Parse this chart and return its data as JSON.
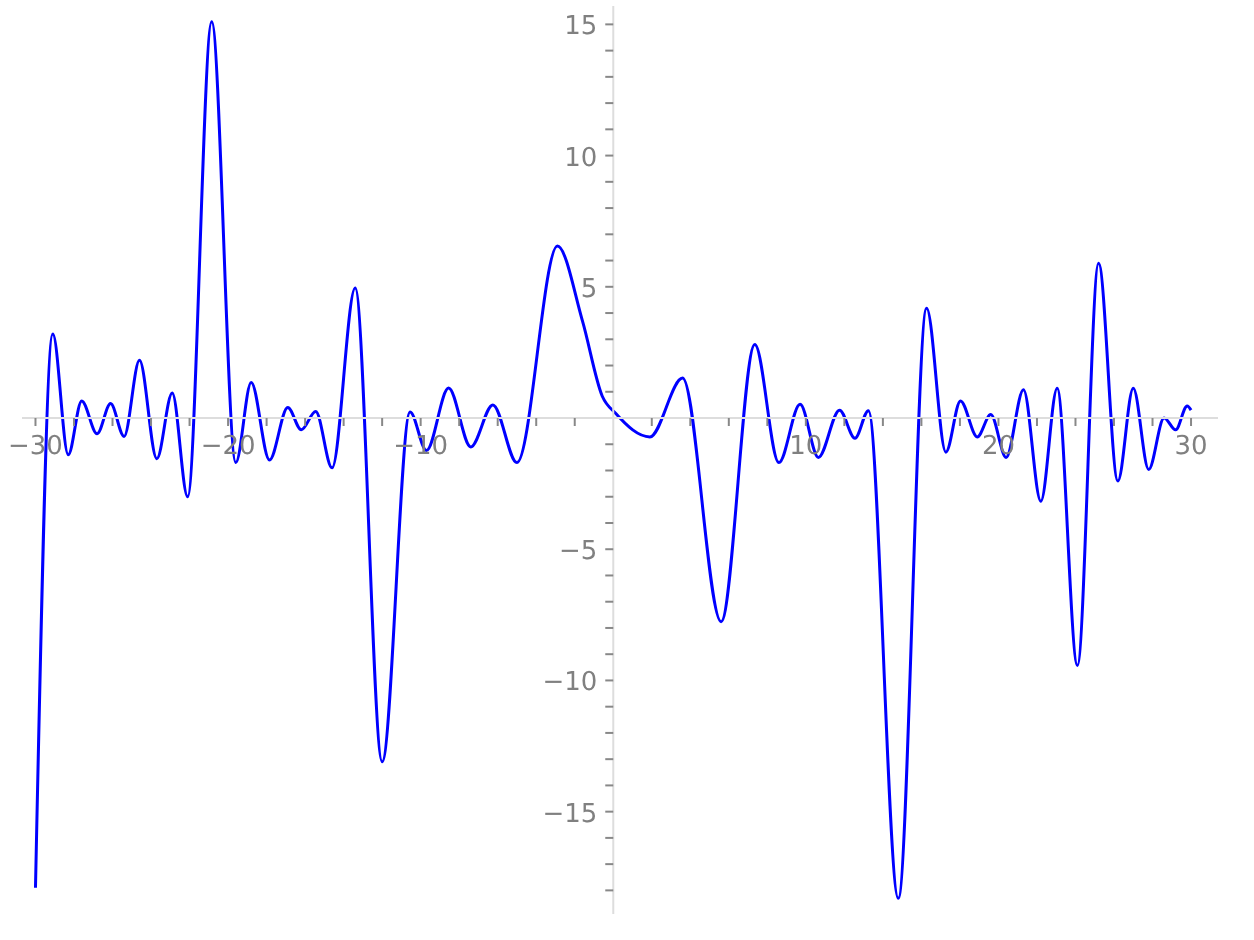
{
  "chart_data": {
    "type": "line",
    "xlim": [
      -30.7,
      31.4
    ],
    "ylim": [
      -18.9,
      15.7
    ],
    "xticks": [
      {
        "value": -30,
        "label": "−30"
      },
      {
        "value": -28,
        "label": null
      },
      {
        "value": -26,
        "label": null
      },
      {
        "value": -24,
        "label": null
      },
      {
        "value": -22,
        "label": null
      },
      {
        "value": -20,
        "label": "−20"
      },
      {
        "value": -18,
        "label": null
      },
      {
        "value": -16,
        "label": null
      },
      {
        "value": -14,
        "label": null
      },
      {
        "value": -12,
        "label": null
      },
      {
        "value": -10,
        "label": "−10"
      },
      {
        "value": -8,
        "label": null
      },
      {
        "value": -6,
        "label": null
      },
      {
        "value": -4,
        "label": null
      },
      {
        "value": -2,
        "label": null
      },
      {
        "value": 2,
        "label": null
      },
      {
        "value": 4,
        "label": null
      },
      {
        "value": 6,
        "label": null
      },
      {
        "value": 8,
        "label": null
      },
      10,
      {
        "value": 12,
        "label": null
      },
      {
        "value": 14,
        "label": null
      },
      {
        "value": 16,
        "label": null
      },
      {
        "value": 18,
        "label": null
      },
      20,
      {
        "value": 22,
        "label": null
      },
      {
        "value": 24,
        "label": null
      },
      {
        "value": 26,
        "label": null
      },
      {
        "value": 28,
        "label": null
      },
      30
    ],
    "yticks": [
      {
        "value": -18,
        "label": null
      },
      {
        "value": -17,
        "label": null
      },
      {
        "value": -16,
        "label": null
      },
      {
        "value": -15,
        "label": "−15"
      },
      {
        "value": -14,
        "label": null
      },
      {
        "value": -13,
        "label": null
      },
      {
        "value": -12,
        "label": null
      },
      {
        "value": -11,
        "label": null
      },
      {
        "value": -10,
        "label": "−10"
      },
      {
        "value": -9,
        "label": null
      },
      {
        "value": -8,
        "label": null
      },
      {
        "value": -7,
        "label": null
      },
      {
        "value": -6,
        "label": null
      },
      {
        "value": -5,
        "label": "−5"
      },
      {
        "value": -4,
        "label": null
      },
      {
        "value": -3,
        "label": null
      },
      {
        "value": -2,
        "label": null
      },
      {
        "value": -1,
        "label": null
      },
      {
        "value": 1,
        "label": null
      },
      {
        "value": 2,
        "label": null
      },
      {
        "value": 3,
        "label": null
      },
      {
        "value": 4,
        "label": null
      },
      5,
      {
        "value": 6,
        "label": null
      },
      {
        "value": 7,
        "label": null
      },
      {
        "value": 8,
        "label": null
      },
      {
        "value": 9,
        "label": null
      },
      10,
      {
        "value": 11,
        "label": null
      },
      {
        "value": 12,
        "label": null
      },
      {
        "value": 13,
        "label": null
      },
      {
        "value": 14,
        "label": null
      },
      15
    ],
    "grid": false,
    "legend": false,
    "marker": "none",
    "line_style": "solid",
    "series": [
      {
        "color": "#0000ff",
        "x": [
          -30.0,
          -29.1,
          -28.3,
          -27.6,
          -26.8,
          -26.1,
          -25.4,
          -24.6,
          -23.7,
          -22.9,
          -22.1,
          -20.85,
          -19.6,
          -18.8,
          -17.85,
          -16.9,
          -16.2,
          -15.45,
          -14.6,
          -13.4,
          -12.0,
          -10.55,
          -9.7,
          -8.55,
          -7.4,
          -6.25,
          -5.0,
          -2.9,
          -1.6,
          -0.57,
          0.12,
          1.9,
          3.6,
          5.6,
          7.35,
          8.6,
          9.7,
          10.65,
          11.75,
          12.55,
          13.25,
          14.8,
          16.27,
          17.27,
          18.03,
          18.9,
          19.6,
          20.4,
          21.3,
          22.2,
          23.05,
          24.1,
          25.2,
          26.2,
          27.0,
          27.8,
          28.6,
          29.2,
          29.8,
          30.0
        ],
        "values": [
          -17.9,
          3.2,
          -1.4,
          0.65,
          -0.6,
          0.55,
          -0.7,
          2.2,
          -1.55,
          0.95,
          -3.0,
          15.1,
          -1.7,
          1.35,
          -1.6,
          0.4,
          -0.45,
          0.25,
          -1.9,
          4.95,
          -13.1,
          0.23,
          -1.24,
          1.14,
          -1.1,
          0.5,
          -1.7,
          6.55,
          3.7,
          0.83,
          0.18,
          -0.72,
          1.52,
          -7.76,
          2.8,
          -1.7,
          0.52,
          -1.5,
          0.3,
          -0.77,
          0.28,
          -18.3,
          4.18,
          -1.3,
          0.65,
          -0.72,
          0.13,
          -1.5,
          1.08,
          -3.17,
          1.13,
          -9.43,
          5.9,
          -2.4,
          1.13,
          -1.96,
          0.0,
          -0.45,
          0.46,
          0.3
        ]
      }
    ]
  }
}
